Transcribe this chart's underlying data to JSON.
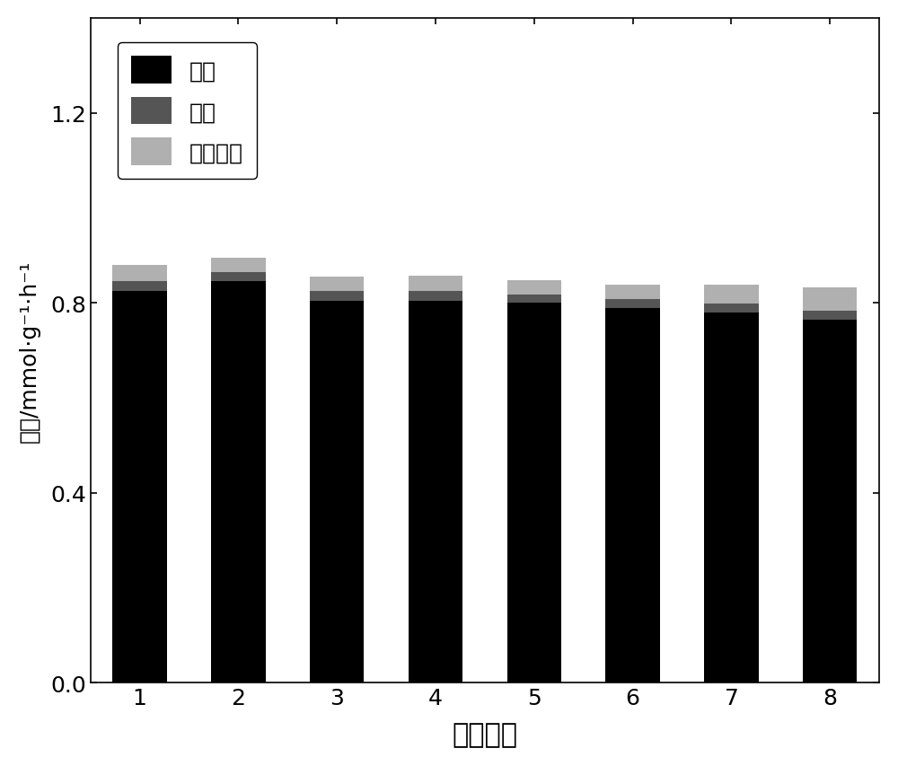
{
  "categories": [
    1,
    2,
    3,
    4,
    5,
    6,
    7,
    8
  ],
  "ethane": [
    0.825,
    0.845,
    0.805,
    0.805,
    0.8,
    0.79,
    0.78,
    0.765
  ],
  "ethylene": [
    0.02,
    0.02,
    0.02,
    0.02,
    0.018,
    0.018,
    0.018,
    0.018
  ],
  "co2": [
    0.035,
    0.03,
    0.03,
    0.033,
    0.03,
    0.03,
    0.04,
    0.05
  ],
  "ethane_color": "#000000",
  "ethylene_color": "#555555",
  "co2_color": "#b0b0b0",
  "legend_labels": [
    "乙烷",
    "乙烯",
    "二氧化碳"
  ],
  "xlabel": "循环次数",
  "ylabel": "产率/mmol·g⁻¹·h⁻¹",
  "ylim": [
    0.0,
    1.4
  ],
  "yticks": [
    0.0,
    0.4,
    0.8,
    1.2
  ],
  "bar_width": 0.55,
  "background_color": "#ffffff",
  "xlabel_fontsize": 22,
  "ylabel_fontsize": 18,
  "tick_fontsize": 18,
  "legend_fontsize": 18
}
